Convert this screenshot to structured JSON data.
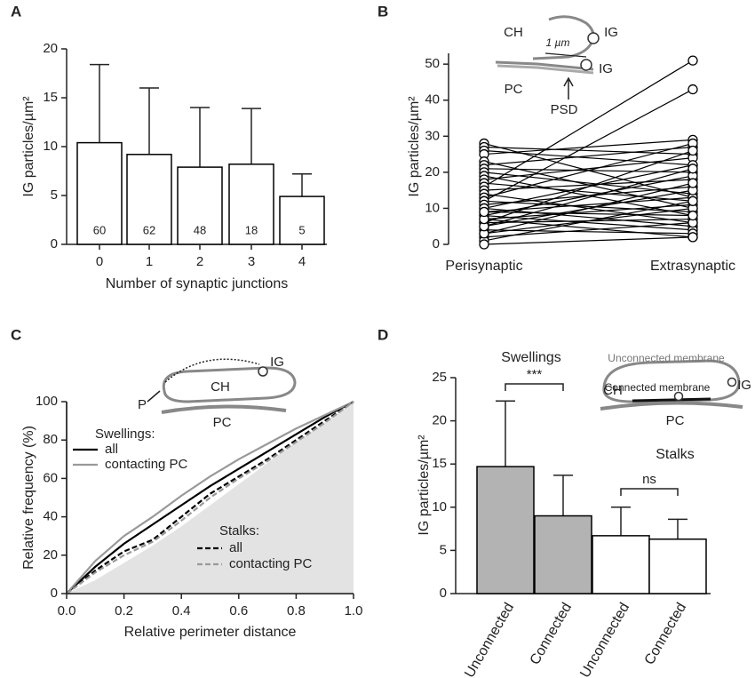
{
  "chart_data": [
    {
      "type": "bar",
      "title": "A",
      "categories": [
        "0",
        "1",
        "2",
        "3",
        "4"
      ],
      "values": [
        10.4,
        9.2,
        7.9,
        8.2,
        4.9
      ],
      "errors": [
        8.0,
        6.8,
        6.1,
        5.7,
        2.3
      ],
      "bar_labels": [
        60,
        62,
        48,
        18,
        5
      ],
      "color": "#ffffff",
      "edgecolor": "#000000",
      "xlabel": "Number of synaptic junctions",
      "ylabel": "IG particles/µm²",
      "ylim": [
        0,
        20
      ],
      "yticks": [
        0,
        5,
        10,
        15,
        20
      ]
    },
    {
      "type": "line",
      "title": "B",
      "categories": [
        "Perisynaptic",
        "Extrasynaptic"
      ],
      "ylabel": "IG particles/µm²",
      "ylim": [
        0,
        53
      ],
      "yticks": [
        0,
        10,
        20,
        30,
        40,
        50
      ],
      "color": "#000000",
      "marker": "o",
      "annotations": [
        "CH",
        "IG",
        "1 µm",
        "IG",
        "PC",
        "PSD"
      ],
      "series": [
        {
          "values": [
            28,
            13
          ]
        },
        {
          "values": [
            27,
            25
          ]
        },
        {
          "values": [
            26,
            22
          ]
        },
        {
          "values": [
            25,
            29
          ]
        },
        {
          "values": [
            23,
            10
          ]
        },
        {
          "values": [
            22,
            27
          ]
        },
        {
          "values": [
            21,
            20
          ]
        },
        {
          "values": [
            20,
            14
          ]
        },
        {
          "values": [
            19,
            8
          ]
        },
        {
          "values": [
            18,
            24
          ]
        },
        {
          "values": [
            17,
            12
          ]
        },
        {
          "values": [
            16,
            51
          ]
        },
        {
          "values": [
            15,
            18
          ]
        },
        {
          "values": [
            14,
            6
          ]
        },
        {
          "values": [
            13,
            28
          ]
        },
        {
          "values": [
            12,
            43
          ]
        },
        {
          "values": [
            12,
            9
          ]
        },
        {
          "values": [
            11,
            16
          ]
        },
        {
          "values": [
            10,
            5
          ]
        },
        {
          "values": [
            10,
            22
          ]
        },
        {
          "values": [
            9,
            13
          ]
        },
        {
          "values": [
            8,
            4
          ]
        },
        {
          "values": [
            8,
            19
          ]
        },
        {
          "values": [
            7,
            11
          ]
        },
        {
          "values": [
            6,
            7
          ]
        },
        {
          "values": [
            6,
            26
          ]
        },
        {
          "values": [
            5,
            15
          ]
        },
        {
          "values": [
            4,
            3
          ]
        },
        {
          "values": [
            3,
            10
          ]
        },
        {
          "values": [
            2,
            6
          ]
        },
        {
          "values": [
            1,
            12
          ]
        },
        {
          "values": [
            0,
            2
          ]
        },
        {
          "values": [
            3,
            17
          ]
        },
        {
          "values": [
            5,
            21
          ]
        },
        {
          "values": [
            7,
            2
          ]
        },
        {
          "values": [
            9,
            8
          ]
        }
      ]
    },
    {
      "type": "line",
      "title": "C",
      "x": [
        0,
        0.1,
        0.2,
        0.3,
        0.4,
        0.5,
        0.6,
        0.7,
        0.8,
        0.9,
        1
      ],
      "xlabel": "Relative perimeter distance",
      "ylabel": "Relative frequency (%)",
      "xlim": [
        0,
        1
      ],
      "xticks": [
        {
          "value": 0,
          "label": "0.0"
        },
        0.2,
        0.4,
        0.6,
        0.8,
        {
          "value": 1,
          "label": "1.0"
        }
      ],
      "ylim": [
        0,
        100
      ],
      "yticks": [
        0,
        20,
        40,
        60,
        80,
        100
      ],
      "legend_groups": [
        "Swellings:",
        "Stalks:"
      ],
      "annotations": [
        "IG",
        "P",
        "CH",
        "PC"
      ],
      "series": [
        {
          "color": "#e3e3e3",
          "fill": true,
          "values": [
            0,
            7,
            16,
            25,
            35,
            46,
            57,
            68,
            79,
            89,
            100
          ]
        },
        {
          "name": "all",
          "color": "#000000",
          "values": [
            0,
            14,
            26,
            36,
            46,
            56,
            65,
            74,
            83,
            92,
            100
          ]
        },
        {
          "name": "contacting PC",
          "color": "#999999",
          "values": [
            0,
            17,
            30,
            40,
            51,
            61,
            70,
            78,
            86,
            93,
            100
          ]
        },
        {
          "name": "all",
          "color": "#000000",
          "dash": true,
          "values": [
            0,
            12,
            22,
            28,
            40,
            52,
            61,
            70,
            80,
            90,
            100
          ]
        },
        {
          "name": "contacting PC",
          "color": "#999999",
          "dash": true,
          "values": [
            0,
            11,
            20,
            27,
            38,
            50,
            60,
            69,
            79,
            89,
            100
          ]
        }
      ]
    },
    {
      "type": "bar",
      "title": "D",
      "categories": [
        "Unconnected",
        "Connected",
        "Unconnected",
        "Connected"
      ],
      "values": [
        14.7,
        9.0,
        6.7,
        6.3
      ],
      "errors": [
        7.6,
        4.7,
        3.3,
        2.3
      ],
      "colors": [
        "#b3b3b3",
        "#b3b3b3",
        "#ffffff",
        "#ffffff"
      ],
      "edgecolor": "#000000",
      "groups": [
        "Swellings",
        "Stalks"
      ],
      "significance": [
        "***",
        "ns"
      ],
      "ylabel": "IG particles/µm²",
      "ylim": [
        0,
        25
      ],
      "yticks": [
        0,
        5,
        10,
        15,
        20,
        25
      ],
      "annotations": [
        "Unconnected membrane",
        "CH",
        "Connected membrane",
        "IG",
        "PC"
      ]
    }
  ]
}
